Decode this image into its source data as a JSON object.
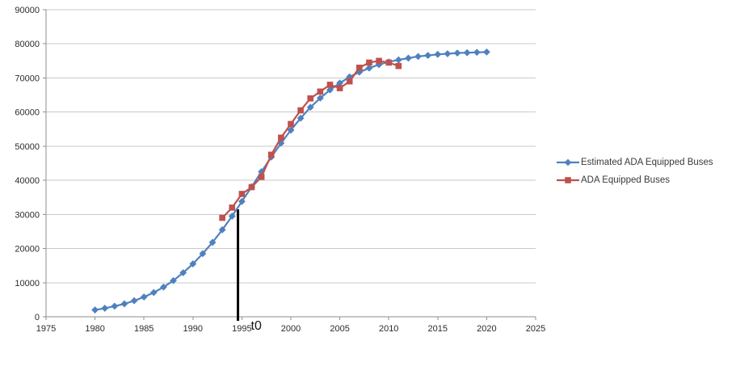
{
  "chart_data": {
    "type": "line",
    "title": "",
    "xlabel": "",
    "ylabel": "",
    "xlim": [
      1975,
      2025
    ],
    "ylim": [
      0,
      90000
    ],
    "grid": true,
    "legend_position": "right-outside",
    "x_ticks": [
      "1975",
      "1980",
      "1985",
      "1990",
      "1995",
      "2000",
      "2005",
      "2010",
      "2015",
      "2020",
      "2025"
    ],
    "y_ticks": [
      "0",
      "10000",
      "20000",
      "30000",
      "40000",
      "50000",
      "60000",
      "70000",
      "80000",
      "90000"
    ],
    "colors": {
      "estimated_series": "#4F81BD",
      "actual_series": "#C0504D",
      "gridline": "#C9C9C9",
      "axis": "#8E8E8E",
      "tick_text": "#2B2B2B",
      "annotation_line": "#000000"
    },
    "series": [
      {
        "name": "Estimated ADA Equipped Buses",
        "marker": "diamond",
        "color": "#4F81BD",
        "years": [
          1980,
          1981,
          1982,
          1983,
          1984,
          1985,
          1986,
          1987,
          1988,
          1989,
          1990,
          1991,
          1992,
          1993,
          1994,
          1995,
          1996,
          1997,
          1998,
          1999,
          2000,
          2001,
          2002,
          2003,
          2004,
          2005,
          2006,
          2007,
          2008,
          2009,
          2010,
          2011,
          2012,
          2013,
          2014,
          2015,
          2016,
          2017,
          2018,
          2019,
          2020
        ],
        "values": [
          2000,
          2500,
          3100,
          3800,
          4700,
          5800,
          7100,
          8700,
          10600,
          12900,
          15500,
          18500,
          21800,
          25500,
          29500,
          33800,
          38100,
          42500,
          46800,
          50900,
          54700,
          58200,
          61400,
          64100,
          66500,
          68500,
          70300,
          71700,
          72900,
          73900,
          74700,
          75300,
          75800,
          76300,
          76600,
          76900,
          77100,
          77300,
          77400,
          77500,
          77600
        ]
      },
      {
        "name": "ADA Equipped Buses",
        "marker": "square",
        "color": "#C0504D",
        "years": [
          1993,
          1994,
          1995,
          1996,
          1997,
          1998,
          1999,
          2000,
          2001,
          2002,
          2003,
          2004,
          2005,
          2006,
          2007,
          2008,
          2009,
          2010,
          2011
        ],
        "values": [
          29000,
          32000,
          36000,
          38000,
          41000,
          47500,
          52500,
          56500,
          60500,
          64000,
          66000,
          68000,
          67000,
          69000,
          73000,
          74500,
          75000,
          74500,
          73500
        ]
      }
    ],
    "annotations": [
      {
        "label": "t0",
        "year": 1994.6,
        "value_top": 31500
      }
    ]
  },
  "legend": {
    "items": [
      {
        "label": "Estimated ADA Equipped Buses"
      },
      {
        "label": "ADA Equipped Buses"
      }
    ]
  }
}
